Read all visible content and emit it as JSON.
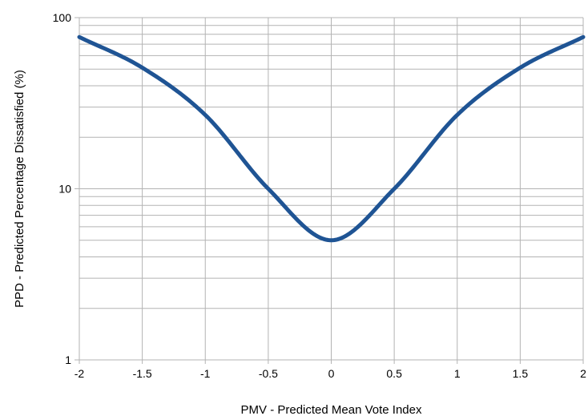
{
  "chart_data": {
    "type": "line",
    "title": "",
    "xlabel": "PMV - Predicted Mean Vote Index",
    "ylabel": "PPD - Predicted Percentage Dissatisfied (%)",
    "xlim": [
      -2,
      2
    ],
    "ylim": [
      1,
      100
    ],
    "yscale": "log",
    "grid": true,
    "legend": "none",
    "x_ticks": [
      -2,
      -1.5,
      -1,
      -0.5,
      0,
      0.5,
      1,
      1.5,
      2
    ],
    "x_tick_labels": [
      "-2",
      "-1.5",
      "-1",
      "-0.5",
      "0",
      "0.5",
      "1",
      "1.5",
      "2"
    ],
    "y_ticks": [
      1,
      10,
      100
    ],
    "y_tick_labels": [
      "1",
      "10",
      "100"
    ],
    "series": [
      {
        "color": "#1f5494",
        "x": [
          -2,
          -1.5,
          -1,
          -0.5,
          0,
          0.5,
          1,
          1.5,
          2
        ],
        "y": [
          77,
          51,
          27,
          10,
          5,
          10,
          27,
          51,
          77
        ]
      }
    ]
  }
}
